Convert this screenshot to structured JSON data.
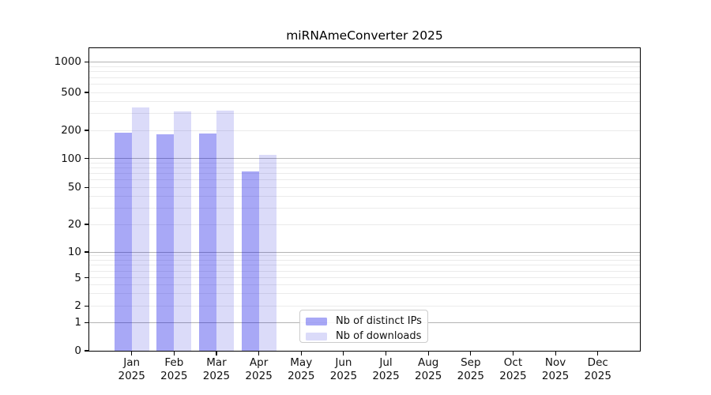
{
  "chart_data": {
    "type": "bar",
    "title": "miRNAmeConverter 2025",
    "xlabel": "",
    "ylabel": "",
    "x_categories": [
      {
        "month": "Jan",
        "year": "2025"
      },
      {
        "month": "Feb",
        "year": "2025"
      },
      {
        "month": "Mar",
        "year": "2025"
      },
      {
        "month": "Apr",
        "year": "2025"
      },
      {
        "month": "May",
        "year": "2025"
      },
      {
        "month": "Jun",
        "year": "2025"
      },
      {
        "month": "Jul",
        "year": "2025"
      },
      {
        "month": "Aug",
        "year": "2025"
      },
      {
        "month": "Sep",
        "year": "2025"
      },
      {
        "month": "Oct",
        "year": "2025"
      },
      {
        "month": "Nov",
        "year": "2025"
      },
      {
        "month": "Dec",
        "year": "2025"
      }
    ],
    "series": [
      {
        "name": "Nb of distinct IPs",
        "color": "rgba(0,0,228,0.34)",
        "color_over_white_hex": "#aaaaf6",
        "values": [
          190,
          180,
          185,
          74,
          null,
          null,
          null,
          null,
          null,
          null,
          null,
          null
        ]
      },
      {
        "name": "Nb of downloads",
        "color": "rgba(0,0,215,0.14)",
        "color_over_white_hex": "#dcdcf9",
        "values": [
          350,
          315,
          320,
          110,
          null,
          null,
          null,
          null,
          null,
          null,
          null,
          null
        ]
      }
    ],
    "y_ticks": [
      0,
      1,
      2,
      5,
      10,
      20,
      50,
      100,
      200,
      500,
      1000
    ],
    "y_scale": "log-like with zero baseline",
    "y_range": [
      0,
      1400
    ],
    "grid": "horizontal only; major gray lines at 1, 10, 100, 1000; faint minor lines at 2-9 per decade",
    "legend_position": "bottom-center inside plot"
  }
}
